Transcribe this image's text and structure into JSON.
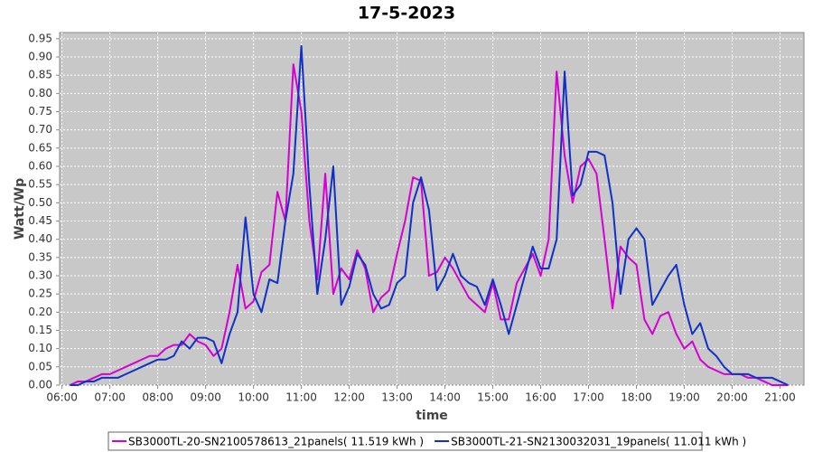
{
  "chart_data": {
    "type": "line",
    "title": "17-5-2023",
    "x_label": "time",
    "y_label": "Watt/Wp",
    "x": [
      "06:10",
      "06:20",
      "06:30",
      "06:40",
      "06:50",
      "07:00",
      "07:10",
      "07:20",
      "07:30",
      "07:40",
      "07:50",
      "08:00",
      "08:10",
      "08:20",
      "08:30",
      "08:40",
      "08:50",
      "09:00",
      "09:10",
      "09:20",
      "09:30",
      "09:40",
      "09:50",
      "10:00",
      "10:10",
      "10:20",
      "10:30",
      "10:40",
      "10:50",
      "11:00",
      "11:10",
      "11:20",
      "11:30",
      "11:40",
      "11:50",
      "12:00",
      "12:10",
      "12:20",
      "12:30",
      "12:40",
      "12:50",
      "13:00",
      "13:10",
      "13:20",
      "13:30",
      "13:40",
      "13:50",
      "14:00",
      "14:10",
      "14:20",
      "14:30",
      "14:40",
      "14:50",
      "15:00",
      "15:10",
      "15:20",
      "15:30",
      "15:40",
      "15:50",
      "16:00",
      "16:10",
      "16:20",
      "16:30",
      "16:40",
      "16:50",
      "17:00",
      "17:10",
      "17:20",
      "17:30",
      "17:40",
      "17:50",
      "18:00",
      "18:10",
      "18:20",
      "18:30",
      "18:40",
      "18:50",
      "19:00",
      "19:10",
      "19:20",
      "19:30",
      "19:40",
      "19:50",
      "20:00",
      "20:10",
      "20:20",
      "20:30",
      "20:40",
      "20:50",
      "21:00",
      "21:10"
    ],
    "series": [
      {
        "name": "SB3000TL-20-SN2100578613_21panels( 11.519 kWh )",
        "color": "#d400d4",
        "values": [
          0,
          0.01,
          0.01,
          0.02,
          0.03,
          0.03,
          0.04,
          0.05,
          0.06,
          0.07,
          0.08,
          0.08,
          0.1,
          0.11,
          0.11,
          0.14,
          0.12,
          0.11,
          0.08,
          0.1,
          0.2,
          0.33,
          0.21,
          0.23,
          0.31,
          0.33,
          0.53,
          0.45,
          0.88,
          0.75,
          0.45,
          0.29,
          0.58,
          0.25,
          0.32,
          0.29,
          0.37,
          0.32,
          0.2,
          0.24,
          0.26,
          0.36,
          0.45,
          0.57,
          0.56,
          0.3,
          0.31,
          0.35,
          0.32,
          0.28,
          0.24,
          0.22,
          0.2,
          0.28,
          0.18,
          0.18,
          0.28,
          0.32,
          0.36,
          0.3,
          0.4,
          0.86,
          0.63,
          0.5,
          0.6,
          0.62,
          0.58,
          0.4,
          0.21,
          0.38,
          0.35,
          0.33,
          0.18,
          0.14,
          0.19,
          0.2,
          0.14,
          0.1,
          0.12,
          0.07,
          0.05,
          0.04,
          0.03,
          0.03,
          0.03,
          0.02,
          0.02,
          0.01,
          0,
          0,
          0
        ]
      },
      {
        "name": "SB3000TL-21-SN2130032031_19panels( 11.011 kWh )",
        "color": "#1030c8",
        "values": [
          0,
          0,
          0.01,
          0.01,
          0.02,
          0.02,
          0.02,
          0.03,
          0.04,
          0.05,
          0.06,
          0.07,
          0.07,
          0.08,
          0.12,
          0.1,
          0.13,
          0.13,
          0.12,
          0.06,
          0.14,
          0.2,
          0.46,
          0.25,
          0.2,
          0.29,
          0.28,
          0.45,
          0.58,
          0.93,
          0.55,
          0.25,
          0.4,
          0.6,
          0.22,
          0.27,
          0.36,
          0.33,
          0.25,
          0.21,
          0.22,
          0.28,
          0.3,
          0.5,
          0.57,
          0.48,
          0.26,
          0.3,
          0.36,
          0.3,
          0.28,
          0.27,
          0.22,
          0.29,
          0.22,
          0.14,
          0.22,
          0.3,
          0.38,
          0.32,
          0.32,
          0.4,
          0.86,
          0.52,
          0.55,
          0.64,
          0.64,
          0.63,
          0.5,
          0.25,
          0.4,
          0.43,
          0.4,
          0.22,
          0.26,
          0.3,
          0.33,
          0.22,
          0.14,
          0.17,
          0.1,
          0.08,
          0.05,
          0.03,
          0.03,
          0.03,
          0.02,
          0.02,
          0.02,
          0.01,
          0
        ]
      }
    ],
    "xlim": [
      "05:57",
      "21:30"
    ],
    "xticks": [
      "06:00",
      "07:00",
      "08:00",
      "09:00",
      "10:00",
      "11:00",
      "12:00",
      "13:00",
      "14:00",
      "15:00",
      "16:00",
      "17:00",
      "18:00",
      "19:00",
      "20:00",
      "21:00"
    ],
    "ylim": [
      0,
      0.967
    ],
    "yticks": [
      {
        "value": 0,
        "label": "0.00"
      },
      {
        "value": 0.05,
        "label": "0.05"
      },
      {
        "value": 0.1,
        "label": "0.10"
      },
      {
        "value": 0.15,
        "label": "0.15"
      },
      {
        "value": 0.2,
        "label": "0.20"
      },
      {
        "value": 0.25,
        "label": "0.25"
      },
      {
        "value": 0.3,
        "label": "0.30"
      },
      {
        "value": 0.35,
        "label": "0.35"
      },
      {
        "value": 0.4,
        "label": "0.40"
      },
      {
        "value": 0.45,
        "label": "0.45"
      },
      {
        "value": 0.5,
        "label": "0.50"
      },
      {
        "value": 0.55,
        "label": "0.55"
      },
      {
        "value": 0.6,
        "label": "0.60"
      },
      {
        "value": 0.65,
        "label": "0.65"
      },
      {
        "value": 0.7,
        "label": "0.70"
      },
      {
        "value": 0.75,
        "label": "0.75"
      },
      {
        "value": 0.8,
        "label": "0.80"
      },
      {
        "value": 0.85,
        "label": "0.85"
      },
      {
        "value": 0.9,
        "label": "0.90"
      },
      {
        "value": 0.95,
        "label": "0.95"
      }
    ],
    "grid": true,
    "legend": "bottom"
  }
}
